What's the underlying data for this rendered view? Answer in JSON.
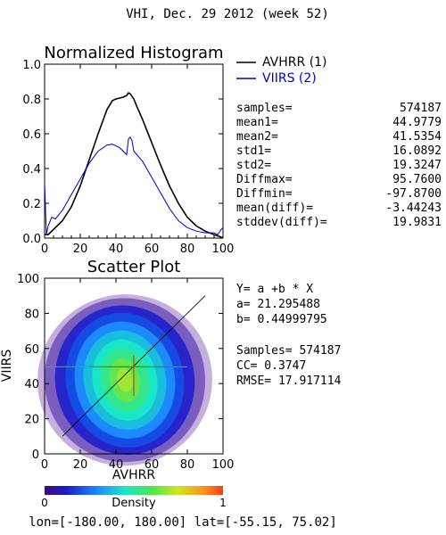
{
  "page_title": "VHI,  Dec. 29 2012 (week 52)",
  "chart_data": [
    {
      "type": "line",
      "title": "Normalized Histogram",
      "xlabel": "",
      "ylabel": "",
      "xlim": [
        0,
        100
      ],
      "ylim": [
        0.0,
        1.0
      ],
      "x_ticks": [
        "0",
        "20",
        "40",
        "60",
        "80",
        "100"
      ],
      "y_ticks": [
        "0.0",
        "0.2",
        "0.4",
        "0.6",
        "0.8",
        "1.0"
      ],
      "legend_position": "top-right",
      "series": [
        {
          "name": "AVHRR (1)",
          "color": "#000000",
          "points": [
            [
              0,
              0.02
            ],
            [
              2,
              0.02
            ],
            [
              5,
              0.05
            ],
            [
              10,
              0.1
            ],
            [
              15,
              0.18
            ],
            [
              20,
              0.3
            ],
            [
              25,
              0.45
            ],
            [
              30,
              0.6
            ],
            [
              35,
              0.74
            ],
            [
              38,
              0.79
            ],
            [
              40,
              0.8
            ],
            [
              44,
              0.81
            ],
            [
              46,
              0.82
            ],
            [
              47,
              0.835
            ],
            [
              48,
              0.83
            ],
            [
              50,
              0.8
            ],
            [
              52,
              0.75
            ],
            [
              55,
              0.68
            ],
            [
              60,
              0.55
            ],
            [
              65,
              0.42
            ],
            [
              70,
              0.3
            ],
            [
              75,
              0.2
            ],
            [
              80,
              0.12
            ],
            [
              85,
              0.07
            ],
            [
              90,
              0.04
            ],
            [
              95,
              0.02
            ],
            [
              98,
              0.01
            ],
            [
              100,
              0.0
            ]
          ]
        },
        {
          "name": "VIIRS (2)",
          "color": "#0000cc",
          "points": [
            [
              0,
              0.32
            ],
            [
              1,
              0.02
            ],
            [
              2,
              0.07
            ],
            [
              4,
              0.12
            ],
            [
              6,
              0.11
            ],
            [
              10,
              0.16
            ],
            [
              15,
              0.25
            ],
            [
              20,
              0.34
            ],
            [
              25,
              0.43
            ],
            [
              30,
              0.5
            ],
            [
              35,
              0.535
            ],
            [
              38,
              0.54
            ],
            [
              42,
              0.52
            ],
            [
              45,
              0.49
            ],
            [
              46,
              0.48
            ],
            [
              47,
              0.57
            ],
            [
              48,
              0.58
            ],
            [
              49,
              0.56
            ],
            [
              50,
              0.5
            ],
            [
              55,
              0.44
            ],
            [
              60,
              0.35
            ],
            [
              65,
              0.26
            ],
            [
              70,
              0.17
            ],
            [
              75,
              0.1
            ],
            [
              80,
              0.06
            ],
            [
              85,
              0.04
            ],
            [
              90,
              0.03
            ],
            [
              95,
              0.03
            ],
            [
              97,
              0.02
            ],
            [
              99,
              0.05
            ],
            [
              100,
              0.06
            ]
          ]
        }
      ]
    },
    {
      "type": "scatter",
      "title": "Scatter Plot",
      "xlabel": "AVHRR",
      "ylabel": "VIIRS",
      "xlim": [
        0,
        100
      ],
      "ylim": [
        0,
        100
      ],
      "x_ticks": [
        "0",
        "20",
        "40",
        "60",
        "80",
        "100"
      ],
      "y_ticks": [
        "0",
        "20",
        "40",
        "60",
        "80",
        "100"
      ],
      "density_center": [
        45,
        42
      ],
      "regression": {
        "a": 21.295488,
        "b": 0.44999795
      },
      "mean_x": 44.9779,
      "mean_y": 41.5354
    }
  ],
  "legend": {
    "avhrr_label": "AVHRR (1)",
    "viirs_label": "VIIRS (2)"
  },
  "stats": [
    {
      "label": "samples=",
      "value": "574187"
    },
    {
      "label": "mean1=",
      "value": "44.9779"
    },
    {
      "label": "mean2=",
      "value": "41.5354"
    },
    {
      "label": "std1=",
      "value": "16.0892"
    },
    {
      "label": "std2=",
      "value": "19.3247"
    },
    {
      "label": "Diffmax=",
      "value": "95.7600"
    },
    {
      "label": "Diffmin=",
      "value": "-97.8700"
    },
    {
      "label": "mean(diff)=",
      "value": "-3.44243"
    },
    {
      "label": "stddev(diff)=",
      "value": "19.9831"
    }
  ],
  "fit_text": {
    "equation": "Y= a +b * X",
    "a_line": "a= 21.295488",
    "b_line": "b= 0.44999795",
    "samples_line": "Samples= 574187",
    "cc_line": "CC=  0.3747",
    "rmse_line": "RMSE= 17.917114"
  },
  "colorbar": {
    "min_label": "0",
    "max_label": "1",
    "title": "Density"
  },
  "footer": "lon=[-180.00, 180.00] lat=[-55.15, 75.02]",
  "colors": {
    "avhrr": "#000000",
    "viirs": "#0000cc",
    "fit_line": "#000000",
    "mean_x_line": "#00dd00",
    "mean_y_line": "#cc4400"
  }
}
